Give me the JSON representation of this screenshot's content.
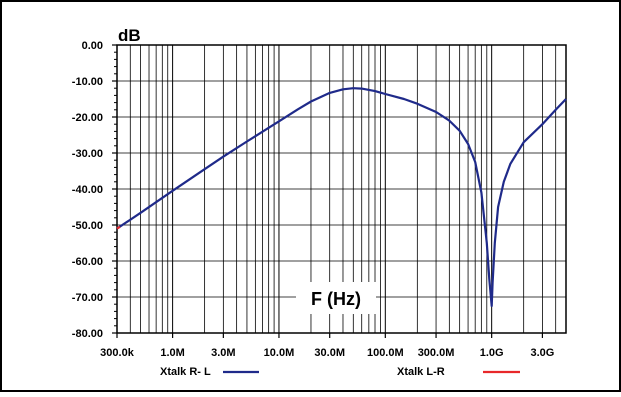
{
  "chart_data": {
    "type": "line",
    "ylabel": "dB",
    "xlabel": "F (Hz)",
    "x_scale": "log",
    "xlim": [
      300000,
      5000000000
    ],
    "ylim": [
      -80,
      0
    ],
    "y_ticks": [
      {
        "value": 0,
        "label": "0.00"
      },
      {
        "value": -10,
        "label": "-10.00"
      },
      {
        "value": -20,
        "label": "-20.00"
      },
      {
        "value": -30,
        "label": "-30.00"
      },
      {
        "value": -40,
        "label": "-40.00"
      },
      {
        "value": -50,
        "label": "-50.00"
      },
      {
        "value": -60,
        "label": "-60.00"
      },
      {
        "value": -70,
        "label": "-70.00"
      },
      {
        "value": -80,
        "label": "-80.00"
      }
    ],
    "x_ticks": [
      {
        "value": 300000,
        "label": "300.0k"
      },
      {
        "value": 1000000,
        "label": "1.0M"
      },
      {
        "value": 3000000,
        "label": "3.0M"
      },
      {
        "value": 10000000,
        "label": "10.0M"
      },
      {
        "value": 30000000,
        "label": "30.0M"
      },
      {
        "value": 100000000,
        "label": "100.0M"
      },
      {
        "value": 300000000,
        "label": "300.0M"
      },
      {
        "value": 1000000000,
        "label": "1.0G"
      },
      {
        "value": 3000000000,
        "label": "3.0G"
      }
    ],
    "grid": true,
    "legend_position": "bottom",
    "series": [
      {
        "name": "Xtalk R- L",
        "color": "#1f2a8a",
        "points": [
          [
            300000,
            -51
          ],
          [
            500000,
            -46.6
          ],
          [
            1000000,
            -40.5
          ],
          [
            2000000,
            -34.5
          ],
          [
            3000000,
            -31
          ],
          [
            5000000,
            -26.8
          ],
          [
            10000000,
            -21.2
          ],
          [
            15000000,
            -17.9
          ],
          [
            20000000,
            -15.7
          ],
          [
            30000000,
            -13.3
          ],
          [
            40000000,
            -12.3
          ],
          [
            50000000,
            -12.0
          ],
          [
            60000000,
            -12.1
          ],
          [
            80000000,
            -12.8
          ],
          [
            100000000,
            -13.6
          ],
          [
            150000000,
            -15.0
          ],
          [
            200000000,
            -16.3
          ],
          [
            300000000,
            -18.6
          ],
          [
            400000000,
            -21.0
          ],
          [
            500000000,
            -23.8
          ],
          [
            600000000,
            -27.5
          ],
          [
            700000000,
            -32.5
          ],
          [
            800000000,
            -41.0
          ],
          [
            900000000,
            -55.0
          ],
          [
            950000000,
            -65.0
          ],
          [
            1000000000,
            -72.5
          ],
          [
            1020000000,
            -66.0
          ],
          [
            1070000000,
            -55.0
          ],
          [
            1150000000,
            -45.0
          ],
          [
            1300000000,
            -38.0
          ],
          [
            1500000000,
            -33.0
          ],
          [
            2000000000,
            -27.0
          ],
          [
            3000000000,
            -22.0
          ],
          [
            4000000000,
            -18.0
          ],
          [
            5000000000,
            -15.0
          ]
        ]
      },
      {
        "name": "Xtalk L-R",
        "color": "#e8282a",
        "points": [
          [
            300000,
            -51
          ],
          [
            320000,
            -50.5
          ]
        ]
      }
    ]
  }
}
